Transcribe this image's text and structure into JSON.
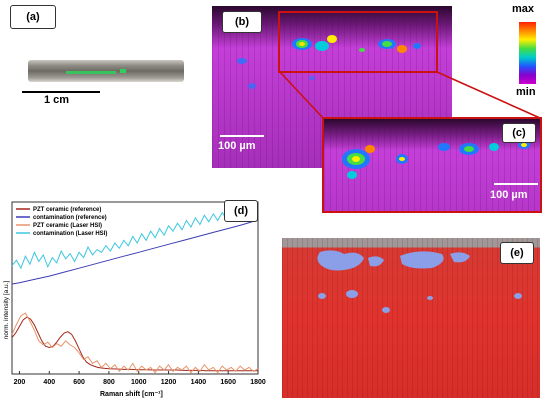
{
  "panels": {
    "a": {
      "tag": "(a)",
      "scale_bar": "1 cm"
    },
    "b": {
      "tag": "(b)",
      "scale_bar": "100 µm"
    },
    "c": {
      "tag": "(c)",
      "scale_bar": "100 µm"
    },
    "colorbar": {
      "max_label": "max",
      "min_label": "min",
      "colors": [
        "#ff2200",
        "#ff8800",
        "#ffee00",
        "#44dd44",
        "#00cccc",
        "#2255ff",
        "#8800cc",
        "#cc00cc"
      ]
    },
    "e": {
      "tag": "(e)"
    }
  },
  "colors": {
    "hsi_background": "#c43fd8",
    "hsi_dark_top": "#3a0a3a",
    "zoom_frame": "#cc1111",
    "classified_red": "#e0332e",
    "classified_blue": "#8a9fe8",
    "axis_line": "#333333"
  },
  "chart_data": {
    "type": "line",
    "tag": "(d)",
    "xlabel": "Raman shift [cm⁻¹]",
    "ylabel": "norm. intensity [a.u.]",
    "xlim": [
      150,
      1800
    ],
    "xticks": [
      "200",
      "400",
      "600",
      "800",
      "1000",
      "1200",
      "1400",
      "1600",
      "1800"
    ],
    "grid": false,
    "legend_position": "top-left",
    "series": [
      {
        "name": "PZT ceramic (reference)",
        "color": "#a2281c",
        "x": [
          150,
          175,
          200,
          225,
          250,
          275,
          300,
          325,
          350,
          375,
          400,
          425,
          450,
          475,
          500,
          525,
          550,
          575,
          600,
          625,
          650,
          675,
          700,
          725,
          750,
          775,
          800,
          850,
          900,
          950,
          1000,
          1050,
          1100,
          1150,
          1200,
          1250,
          1300,
          1350,
          1400,
          1450,
          1500,
          1550,
          1600,
          1650,
          1700,
          1750,
          1800
        ],
        "y": [
          0.55,
          0.62,
          0.72,
          0.82,
          0.86,
          0.83,
          0.74,
          0.62,
          0.5,
          0.42,
          0.4,
          0.42,
          0.48,
          0.56,
          0.62,
          0.64,
          0.6,
          0.5,
          0.38,
          0.26,
          0.18,
          0.14,
          0.12,
          0.1,
          0.09,
          0.085,
          0.08,
          0.075,
          0.07,
          0.07,
          0.065,
          0.065,
          0.06,
          0.06,
          0.06,
          0.06,
          0.055,
          0.055,
          0.055,
          0.05,
          0.05,
          0.05,
          0.05,
          0.05,
          0.05,
          0.05,
          0.05
        ]
      },
      {
        "name": "contamination (reference)",
        "color": "#3b3cb5",
        "x": [
          150,
          200,
          300,
          400,
          500,
          600,
          700,
          800,
          900,
          1000,
          1100,
          1200,
          1300,
          1400,
          1500,
          1600,
          1700,
          1800
        ],
        "y": [
          1.36,
          1.38,
          1.43,
          1.48,
          1.54,
          1.6,
          1.66,
          1.72,
          1.78,
          1.84,
          1.9,
          1.96,
          2.02,
          2.08,
          2.14,
          2.2,
          2.26,
          2.33
        ]
      },
      {
        "name": "PZT ceramic (Laser HSI)",
        "color": "#e8956a",
        "x": [
          150,
          180,
          210,
          240,
          270,
          300,
          330,
          360,
          390,
          420,
          450,
          480,
          510,
          540,
          570,
          600,
          630,
          660,
          690,
          720,
          750,
          780,
          810,
          840,
          870,
          900,
          930,
          960,
          990,
          1020,
          1050,
          1080,
          1110,
          1140,
          1170,
          1200,
          1230,
          1260,
          1290,
          1320,
          1350,
          1380,
          1410,
          1440,
          1470,
          1500,
          1530,
          1560,
          1590,
          1620,
          1650,
          1680,
          1710,
          1740,
          1770,
          1800
        ],
        "y": [
          0.6,
          0.75,
          0.88,
          0.92,
          0.8,
          0.66,
          0.5,
          0.44,
          0.48,
          0.4,
          0.46,
          0.42,
          0.5,
          0.44,
          0.4,
          0.32,
          0.22,
          0.26,
          0.16,
          0.2,
          0.1,
          0.16,
          0.08,
          0.14,
          0.04,
          0.12,
          0.06,
          0.16,
          0.04,
          0.12,
          0.06,
          0.1,
          0.02,
          0.12,
          0.06,
          0.14,
          0.04,
          0.1,
          0.06,
          0.12,
          0.02,
          0.1,
          0.04,
          0.14,
          0.06,
          0.1,
          0.02,
          0.12,
          0.06,
          0.1,
          0.04,
          0.12,
          0.06,
          0.1,
          0.04,
          0.08
        ]
      },
      {
        "name": "contamination (Laser HSI)",
        "color": "#3cc7df",
        "x": [
          150,
          180,
          210,
          240,
          270,
          300,
          330,
          360,
          390,
          420,
          450,
          480,
          510,
          540,
          570,
          600,
          630,
          660,
          690,
          720,
          750,
          780,
          810,
          840,
          870,
          900,
          930,
          960,
          990,
          1020,
          1050,
          1080,
          1110,
          1140,
          1170,
          1200,
          1230,
          1260,
          1290,
          1320,
          1350,
          1380,
          1410,
          1440,
          1470,
          1500,
          1530,
          1560,
          1590,
          1620,
          1650,
          1680,
          1710,
          1740,
          1770,
          1800
        ],
        "y": [
          1.64,
          1.72,
          1.6,
          1.78,
          1.66,
          1.84,
          1.7,
          1.8,
          1.62,
          1.76,
          1.68,
          1.86,
          1.74,
          1.82,
          1.7,
          1.84,
          1.76,
          1.92,
          1.8,
          1.88,
          1.84,
          1.94,
          1.86,
          1.98,
          1.9,
          2.02,
          1.94,
          2.08,
          1.98,
          2.12,
          2.02,
          2.16,
          2.06,
          2.2,
          2.1,
          2.24,
          2.16,
          2.28,
          2.18,
          2.32,
          2.22,
          2.36,
          2.26,
          2.4,
          2.3,
          2.42,
          2.32,
          2.44,
          2.34,
          2.46,
          2.38,
          2.5,
          2.42,
          2.48,
          2.44,
          2.5
        ]
      }
    ]
  }
}
